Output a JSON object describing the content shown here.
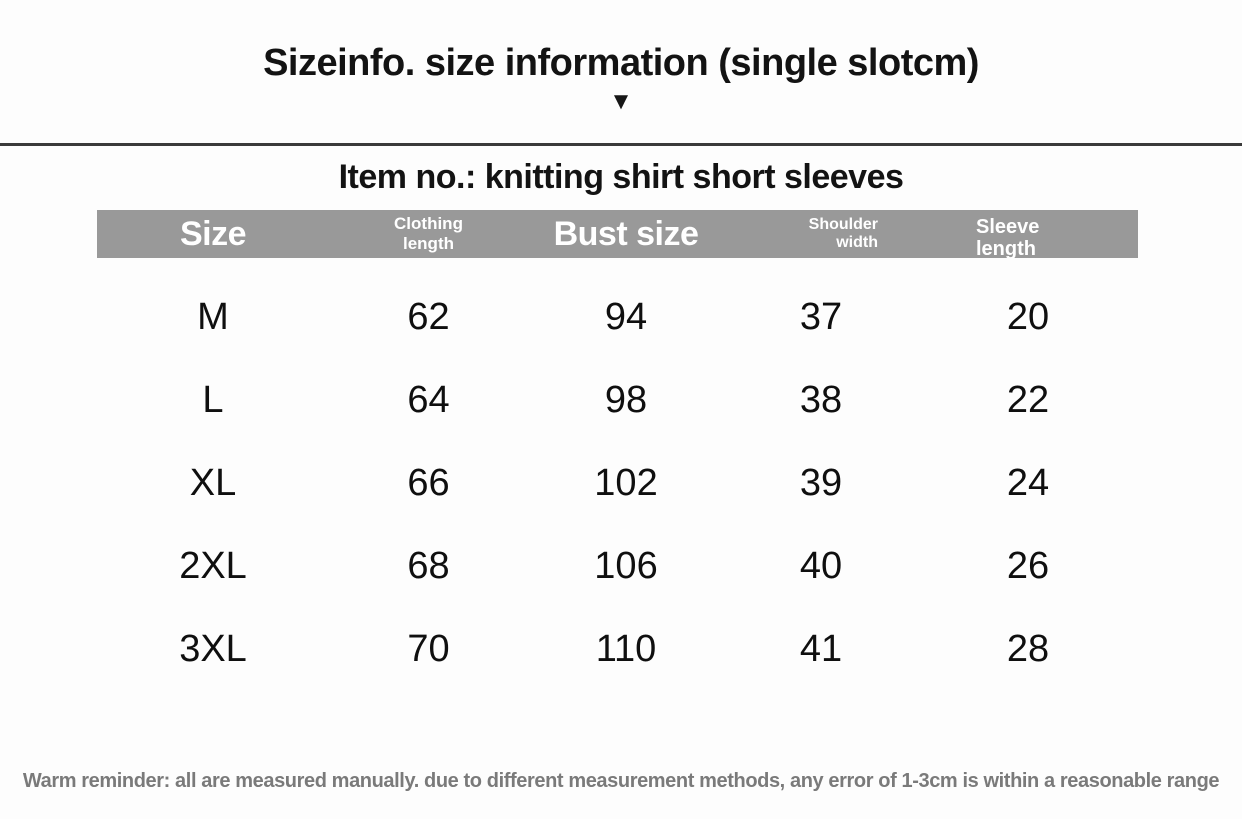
{
  "page": {
    "title": "Sizeinfo. size information (single slotcm)",
    "arrow_icon": "▼",
    "item_heading": "Item no.: knitting shirt short sleeves",
    "footer_note": "Warm reminder: all are measured manually. due to different measurement methods, any error of 1-3cm is within a reasonable range"
  },
  "table": {
    "headers": {
      "size": "Size",
      "clothing_length": "Clothing\nlength",
      "bust_size": "Bust size",
      "shoulder_width": "Shoulder\nwidth",
      "sleeve_length": "Sleeve\nlength"
    }
  },
  "colors": {
    "header_bar_bg": "#999999",
    "header_text": "#ffffff",
    "body_text": "#0f0f0f",
    "divider_line": "#3a3a3a",
    "footer_text": "#7a7a7a"
  },
  "chart_data": {
    "type": "table",
    "title": "Sizeinfo. size information (single slotcm)",
    "subtitle": "Item no.: knitting shirt short sleeves",
    "unit": "cm",
    "columns": [
      "Size",
      "Clothing length",
      "Bust size",
      "Shoulder width",
      "Sleeve length"
    ],
    "rows": [
      [
        "M",
        62,
        94,
        37,
        20
      ],
      [
        "L",
        64,
        98,
        38,
        22
      ],
      [
        "XL",
        66,
        102,
        39,
        24
      ],
      [
        "2XL",
        68,
        106,
        40,
        26
      ],
      [
        "3XL",
        70,
        110,
        41,
        28
      ]
    ],
    "note": "Warm reminder: all are measured manually. due to different measurement methods, any error of 1-3cm is within a reasonable range"
  }
}
